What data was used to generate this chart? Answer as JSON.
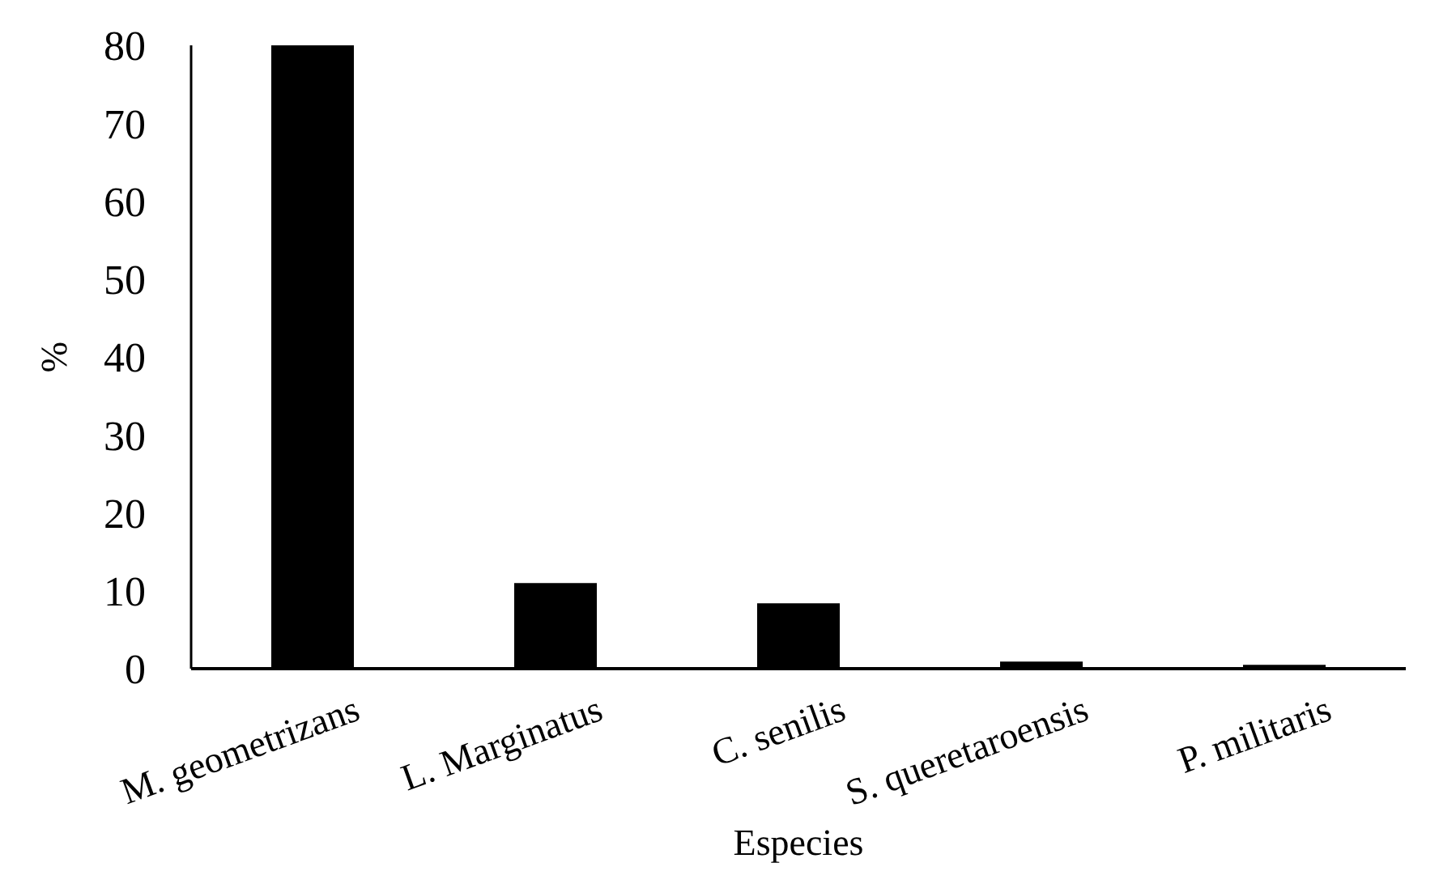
{
  "chart_data": {
    "type": "bar",
    "xlabel": "Especies",
    "ylabel": "%",
    "categories": [
      "M. geometrizans",
      "L. Marginatus",
      "C. senilis",
      "S. queretaroensis",
      "P. militaris"
    ],
    "values": [
      80,
      11,
      8.4,
      0.9,
      0.5
    ],
    "color": "#000000",
    "ylim": [
      0,
      80
    ],
    "yticks": [
      0,
      10,
      20,
      30,
      40,
      50,
      60,
      70,
      80
    ],
    "grid": false
  }
}
